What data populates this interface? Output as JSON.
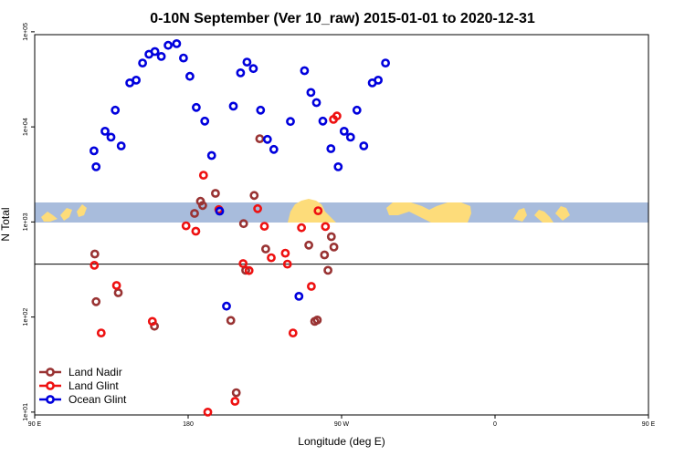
{
  "chart_data": {
    "type": "scatter",
    "title": "0-10N September (Ver 10_raw)   2015-01-01 to 2020-12-31",
    "xlabel": "Longitude (deg E)",
    "ylabel": "N Total",
    "xlim": [
      90,
      450
    ],
    "ylim_log10": [
      0.97,
      4.97
    ],
    "y_scale": "log",
    "x_ticks": [
      {
        "value": 90,
        "label": "90 E"
      },
      {
        "value": 180,
        "label": "180"
      },
      {
        "value": 270,
        "label": "90 W"
      },
      {
        "value": 360,
        "label": "0"
      },
      {
        "value": 450,
        "label": "90 E"
      },
      {
        "value": 540,
        "label": "180"
      }
    ],
    "y_ticks": [
      {
        "value": 10,
        "label": "1e+01"
      },
      {
        "value": 100,
        "label": "1e+02"
      },
      {
        "value": 1000,
        "label": "1e+03"
      },
      {
        "value": 10000,
        "label": "1e+04"
      },
      {
        "value": 100000,
        "label": "1e+05"
      }
    ],
    "reference_line_y": 360,
    "legend_position": "bottom-left",
    "map_strip": {
      "y_top": 1420,
      "y_bottom": 1000,
      "land_color": "#fddc7a",
      "ocean_color": "#a8bcdc"
    },
    "series": [
      {
        "name": "Land Nadir",
        "color": "#993333",
        "points": [
          [
            501,
            460
          ],
          [
            504,
            145
          ],
          [
            556,
            180
          ],
          [
            641,
            80
          ],
          [
            735,
            1230
          ],
          [
            749,
            1650
          ],
          [
            754,
            1490
          ],
          [
            784,
            2000
          ],
          [
            820,
            92
          ],
          [
            833,
            16
          ],
          [
            850,
            960
          ],
          [
            855,
            310
          ],
          [
            875,
            1900
          ],
          [
            888,
            7500
          ],
          [
            902,
            520
          ],
          [
            1003,
            570
          ],
          [
            1017,
            90
          ],
          [
            1023,
            93
          ],
          [
            1040,
            450
          ],
          [
            1048,
            310
          ],
          [
            1056,
            700
          ],
          [
            1062,
            545
          ]
        ]
      },
      {
        "name": "Land Glint",
        "color": "#ee1111",
        "points": [
          [
            500,
            350
          ],
          [
            516,
            68
          ],
          [
            552,
            215
          ],
          [
            636,
            90
          ],
          [
            715,
            910
          ],
          [
            738,
            800
          ],
          [
            756,
            3100
          ],
          [
            766,
            10
          ],
          [
            792,
            1350
          ],
          [
            830,
            13
          ],
          [
            849,
            365
          ],
          [
            863,
            308
          ],
          [
            883,
            1380
          ],
          [
            899,
            900
          ],
          [
            915,
            420
          ],
          [
            948,
            470
          ],
          [
            953,
            360
          ],
          [
            966,
            68
          ],
          [
            986,
            870
          ],
          [
            1009,
            210
          ],
          [
            1025,
            1310
          ],
          [
            1042,
            895
          ],
          [
            1061,
            12000
          ],
          [
            1069,
            13000
          ]
        ]
      },
      {
        "name": "Ocean Glint",
        "color": "#0000dd",
        "points": [
          [
            499,
            5600
          ],
          [
            504,
            3800
          ],
          [
            525,
            9000
          ],
          [
            539,
            7800
          ],
          [
            549,
            15000
          ],
          [
            563,
            6300
          ],
          [
            583,
            29000
          ],
          [
            598,
            31000
          ],
          [
            613,
            47000
          ],
          [
            628,
            58000
          ],
          [
            642,
            62000
          ],
          [
            657,
            55000
          ],
          [
            673,
            72000
          ],
          [
            693,
            75000
          ],
          [
            709,
            53000
          ],
          [
            724,
            34000
          ],
          [
            739,
            16000
          ],
          [
            759,
            11500
          ],
          [
            775,
            5000
          ],
          [
            794,
            1300
          ],
          [
            810,
            130
          ],
          [
            826,
            16500
          ],
          [
            843,
            37000
          ],
          [
            858,
            48000
          ],
          [
            873,
            41000
          ],
          [
            890,
            15000
          ],
          [
            906,
            7400
          ],
          [
            921,
            5800
          ],
          [
            960,
            11400
          ],
          [
            980,
            165
          ],
          [
            993,
            39000
          ],
          [
            1008,
            23000
          ],
          [
            1021,
            18000
          ],
          [
            1036,
            11500
          ],
          [
            1055,
            5900
          ],
          [
            1072,
            3800
          ],
          [
            1086,
            9000
          ],
          [
            1101,
            7800
          ],
          [
            1116,
            15000
          ],
          [
            1132,
            6300
          ],
          [
            1152,
            29000
          ],
          [
            1166,
            31000
          ],
          [
            1183,
            47000
          ]
        ]
      }
    ]
  }
}
